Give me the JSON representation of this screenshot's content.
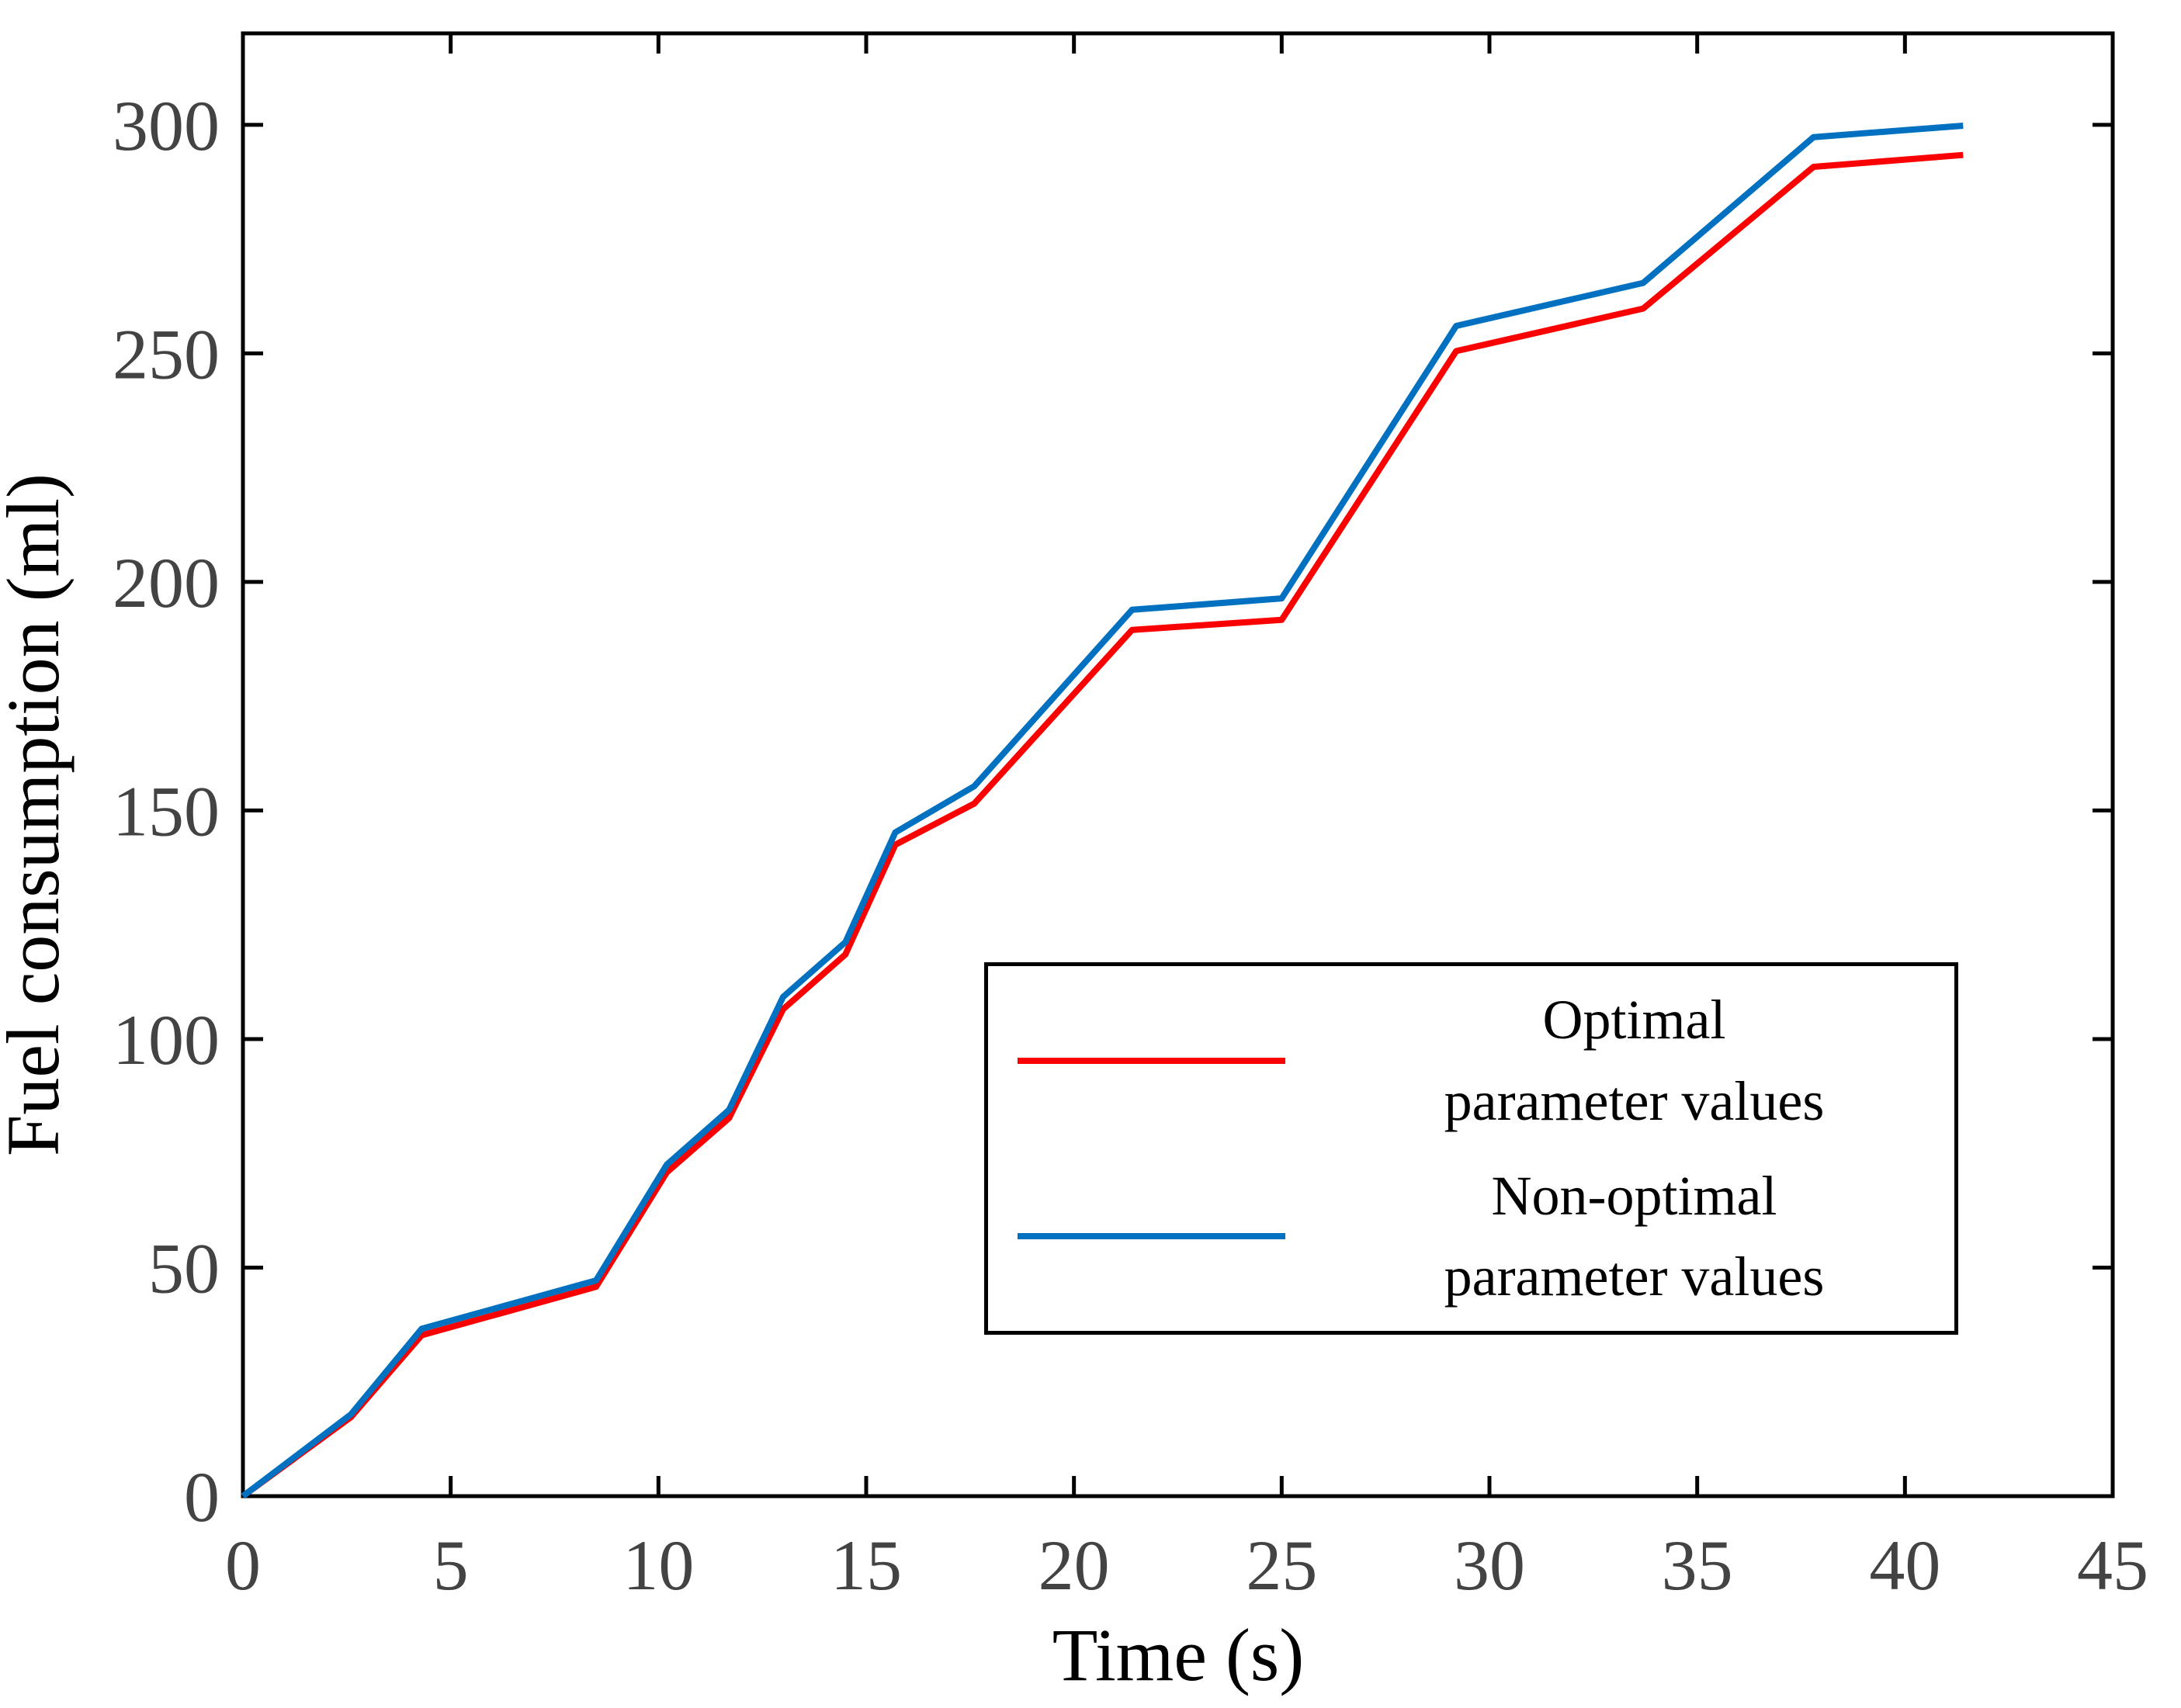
{
  "chart_data": {
    "type": "line",
    "title": "",
    "xlabel": "Time (s)",
    "ylabel": "Fuel consumption (ml)",
    "xlim": [
      0,
      45
    ],
    "ylim": [
      0,
      320
    ],
    "xticks": [
      0,
      5,
      10,
      15,
      20,
      25,
      30,
      35,
      40,
      45
    ],
    "yticks": [
      0,
      50,
      100,
      150,
      200,
      250,
      300
    ],
    "grid": false,
    "legend_position": "inside-lower-right",
    "x": [
      0,
      2.6,
      4.3,
      8.5,
      10.2,
      11.7,
      13.0,
      14.5,
      15.7,
      17.6,
      21.4,
      25.0,
      29.2,
      33.7,
      37.8,
      41.4
    ],
    "series": [
      {
        "name": "Optimal parameter values",
        "legend_lines": [
          "Optimal",
          "parameter values"
        ],
        "color": "#fa0000",
        "values": [
          0,
          17.3,
          35.2,
          45.8,
          70.8,
          82.7,
          106.5,
          118.5,
          142.5,
          151.5,
          189.5,
          191.7,
          250.5,
          259.8,
          290.8,
          293.4
        ]
      },
      {
        "name": "Non-optimal parameter values",
        "legend_lines": [
          "Non-optimal",
          "parameter values"
        ],
        "color": "#0070c0",
        "values": [
          0,
          17.9,
          36.6,
          47.2,
          72.5,
          84.5,
          109.2,
          121.2,
          145.2,
          155.3,
          193.9,
          196.4,
          256.0,
          265.4,
          297.3,
          299.8
        ]
      }
    ],
    "axis_color": "#000000",
    "tick_label_color": "#434343"
  }
}
